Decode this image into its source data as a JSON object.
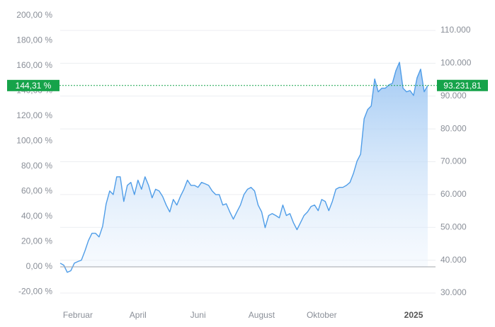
{
  "chart_data": {
    "type": "area",
    "series": [
      {
        "color": "#4f9de8",
        "axis": "y2",
        "values": [
          39100,
          38500,
          36300,
          36800,
          39100,
          39600,
          40000,
          42800,
          46000,
          48200,
          48200,
          47100,
          50300,
          57200,
          61100,
          60000,
          65400,
          65400,
          57900,
          62800,
          63700,
          60000,
          64400,
          61600,
          65400,
          62800,
          59000,
          61600,
          61100,
          59400,
          56800,
          54700,
          58500,
          56800,
          59400,
          61600,
          64400,
          62800,
          62800,
          62200,
          63700,
          63300,
          62800,
          61100,
          60000,
          60000,
          56800,
          57200,
          54700,
          52500,
          54700,
          56800,
          60000,
          61600,
          62200,
          61100,
          56800,
          54700,
          49900,
          53600,
          54200,
          53600,
          52900,
          56800,
          53600,
          54200,
          51400,
          49300,
          51400,
          53600,
          54700,
          56400,
          56800,
          55100,
          58500,
          57900,
          55100,
          57900,
          61600,
          62200,
          62200,
          62800,
          63700,
          66500,
          70200,
          72300,
          83100,
          85900,
          87000,
          95200,
          91300,
          92400,
          92400,
          93400,
          93900,
          97800,
          100300,
          92400,
          91300,
          91700,
          90200,
          95600,
          98200,
          91300,
          93231.81
        ]
      }
    ],
    "xlim": [
      0,
      104
    ],
    "xticks": [
      {
        "value": 5,
        "label": "Februar"
      },
      {
        "value": 22,
        "label": "April"
      },
      {
        "value": 39,
        "label": "Juni"
      },
      {
        "value": 57,
        "label": "August"
      },
      {
        "value": 74,
        "label": "Oktober"
      },
      {
        "value": 100,
        "label": "2025"
      }
    ],
    "ylim": [
      -20,
      200
    ],
    "yticks": [
      {
        "value": -20,
        "label": "-20,00 %"
      },
      {
        "value": 0,
        "label": "0,00 %"
      },
      {
        "value": 20,
        "label": "20,00 %"
      },
      {
        "value": 40,
        "label": "40,00 %"
      },
      {
        "value": 60,
        "label": "60,00 %"
      },
      {
        "value": 80,
        "label": "80,00 %"
      },
      {
        "value": 100,
        "label": "100,00 %"
      },
      {
        "value": 120,
        "label": "120,00 %"
      },
      {
        "value": 140,
        "label": "140,00 %"
      },
      {
        "value": 160,
        "label": "160,00 %"
      },
      {
        "value": 180,
        "label": "180,00 %"
      },
      {
        "value": 200,
        "label": "200,00 %"
      }
    ],
    "y2lim": [
      30320,
      114530
    ],
    "y2ticks": [
      {
        "value": 30000,
        "label": "30.000"
      },
      {
        "value": 40000,
        "label": "40.000"
      },
      {
        "value": 50000,
        "label": "50.000"
      },
      {
        "value": 60000,
        "label": "60.000"
      },
      {
        "value": 70000,
        "label": "70.000"
      },
      {
        "value": 80000,
        "label": "80.000"
      },
      {
        "value": 90000,
        "label": "90.000"
      },
      {
        "value": 100000,
        "label": "100.000"
      },
      {
        "value": 110000,
        "label": "110.000"
      }
    ],
    "grid": true,
    "marker": {
      "value": 93231.81,
      "label": "93.231,81",
      "pct_value": 144.31,
      "pct_label": "144,31 %",
      "color": "#16a34a"
    }
  }
}
